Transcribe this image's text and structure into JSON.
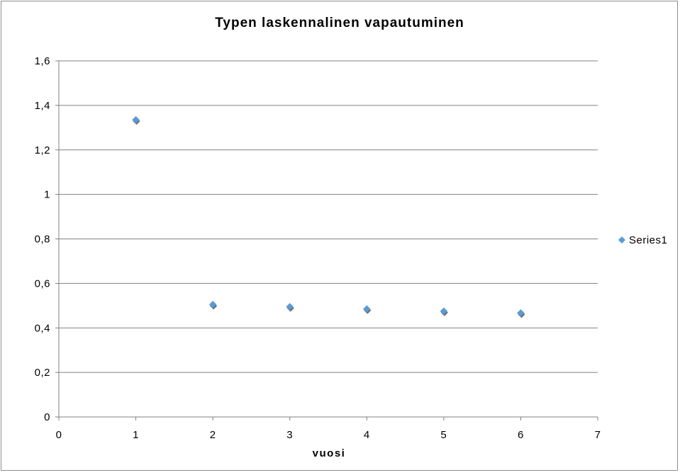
{
  "chart_data": {
    "type": "scatter",
    "title": "Typen laskennalinen vapautuminen",
    "xlabel": "vuosi",
    "ylabel": "",
    "xlim": [
      0,
      7
    ],
    "ylim": [
      0,
      1.6
    ],
    "x_ticks": [
      "0",
      "1",
      "2",
      "3",
      "4",
      "5",
      "6",
      "7"
    ],
    "y_ticks": [
      "0",
      "0,2",
      "0,4",
      "0,6",
      "0,8",
      "1",
      "1,2",
      "1,4",
      "1,6"
    ],
    "grid": "horizontal",
    "legend_position": "right",
    "series": [
      {
        "name": "Series1",
        "color": "#5b9bd5",
        "marker": "diamond",
        "x": [
          1,
          2,
          3,
          4,
          5,
          6
        ],
        "y": [
          1.335,
          0.505,
          0.495,
          0.485,
          0.475,
          0.467
        ]
      }
    ]
  }
}
